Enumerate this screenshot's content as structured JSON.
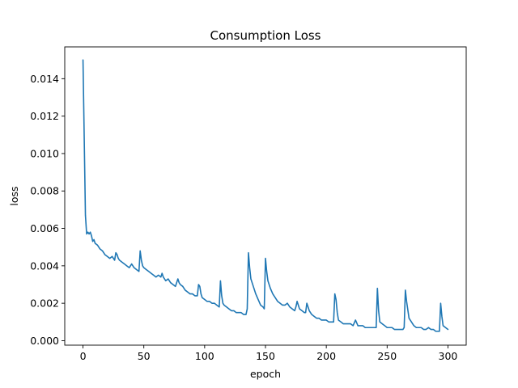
{
  "chart_data": {
    "type": "line",
    "title": "Consumption Loss",
    "xlabel": "epoch",
    "ylabel": "loss",
    "xlim": [
      -15,
      315
    ],
    "ylim": [
      -0.00024,
      0.0157
    ],
    "xticks": [
      0,
      50,
      100,
      150,
      200,
      250,
      300
    ],
    "xtick_labels": [
      "0",
      "50",
      "100",
      "150",
      "200",
      "250",
      "300"
    ],
    "yticks": [
      0.0,
      0.002,
      0.004,
      0.006,
      0.008,
      0.01,
      0.012,
      0.014
    ],
    "ytick_labels": [
      "0.000",
      "0.002",
      "0.004",
      "0.006",
      "0.008",
      "0.010",
      "0.012",
      "0.014"
    ],
    "grid": false,
    "line_color": "#1f77b4",
    "series": [
      {
        "x": [
          0,
          2,
          3,
          4,
          5,
          6,
          7,
          8,
          9,
          10,
          12,
          14,
          16,
          18,
          20,
          22,
          24,
          26,
          27,
          28,
          29,
          30,
          32,
          34,
          36,
          38,
          40,
          42,
          44,
          46,
          47,
          48,
          49,
          50,
          52,
          54,
          56,
          58,
          60,
          62,
          64,
          65,
          66,
          68,
          70,
          72,
          74,
          76,
          78,
          79,
          80,
          82,
          84,
          86,
          88,
          90,
          92,
          94,
          95,
          96,
          97,
          98,
          100,
          102,
          104,
          106,
          108,
          110,
          112,
          113,
          114,
          115,
          116,
          118,
          120,
          122,
          124,
          126,
          128,
          130,
          132,
          134,
          135,
          136,
          137,
          138,
          140,
          142,
          144,
          146,
          148,
          149,
          150,
          151,
          152,
          154,
          156,
          158,
          160,
          162,
          164,
          166,
          168,
          170,
          172,
          174,
          175,
          176,
          178,
          180,
          182,
          183,
          184,
          186,
          188,
          190,
          192,
          194,
          196,
          198,
          200,
          202,
          204,
          206,
          207,
          208,
          209,
          210,
          212,
          214,
          216,
          218,
          220,
          222,
          224,
          226,
          228,
          230,
          232,
          234,
          236,
          238,
          240,
          241,
          242,
          243,
          244,
          246,
          248,
          250,
          252,
          254,
          256,
          258,
          260,
          262,
          263,
          264,
          265,
          266,
          268,
          270,
          272,
          274,
          276,
          278,
          280,
          282,
          284,
          286,
          288,
          290,
          292,
          293,
          294,
          295,
          296,
          298,
          300
        ],
        "y": [
          0.015,
          0.0067,
          0.0057,
          0.0058,
          0.0057,
          0.0058,
          0.0056,
          0.0053,
          0.0054,
          0.0052,
          0.0051,
          0.0049,
          0.0048,
          0.0046,
          0.0045,
          0.0044,
          0.0045,
          0.0043,
          0.0047,
          0.0046,
          0.0044,
          0.0043,
          0.0042,
          0.0041,
          0.004,
          0.0039,
          0.0041,
          0.0039,
          0.0038,
          0.0037,
          0.0048,
          0.0043,
          0.004,
          0.0039,
          0.0038,
          0.0037,
          0.0036,
          0.0035,
          0.0034,
          0.0035,
          0.0034,
          0.0036,
          0.0034,
          0.0032,
          0.0033,
          0.0031,
          0.003,
          0.0029,
          0.0033,
          0.0031,
          0.003,
          0.0029,
          0.0027,
          0.0026,
          0.0025,
          0.0025,
          0.0024,
          0.0024,
          0.003,
          0.0029,
          0.0025,
          0.0023,
          0.0022,
          0.0021,
          0.0021,
          0.002,
          0.002,
          0.0019,
          0.0018,
          0.0032,
          0.0024,
          0.002,
          0.0019,
          0.0018,
          0.0017,
          0.0016,
          0.0016,
          0.0015,
          0.0015,
          0.0015,
          0.0014,
          0.0014,
          0.0017,
          0.0047,
          0.0039,
          0.0033,
          0.0029,
          0.0025,
          0.0022,
          0.0019,
          0.0018,
          0.0017,
          0.0044,
          0.0037,
          0.0032,
          0.0028,
          0.0025,
          0.0023,
          0.0021,
          0.002,
          0.0019,
          0.0019,
          0.002,
          0.0018,
          0.0017,
          0.0016,
          0.0018,
          0.0021,
          0.0017,
          0.0016,
          0.0015,
          0.0015,
          0.002,
          0.0016,
          0.0014,
          0.0013,
          0.0012,
          0.0012,
          0.0011,
          0.0011,
          0.0011,
          0.001,
          0.001,
          0.001,
          0.0025,
          0.0022,
          0.0015,
          0.0011,
          0.001,
          0.0009,
          0.0009,
          0.0009,
          0.0009,
          0.0008,
          0.0011,
          0.0008,
          0.0008,
          0.0008,
          0.0007,
          0.0007,
          0.0007,
          0.0007,
          0.0007,
          0.0007,
          0.0028,
          0.0016,
          0.001,
          0.0009,
          0.0008,
          0.0007,
          0.0007,
          0.0007,
          0.0006,
          0.0006,
          0.0006,
          0.0006,
          0.0006,
          0.0007,
          0.0027,
          0.0021,
          0.0012,
          0.001,
          0.0008,
          0.0007,
          0.0007,
          0.0007,
          0.0006,
          0.0006,
          0.0007,
          0.0006,
          0.0006,
          0.0005,
          0.0005,
          0.0005,
          0.002,
          0.0013,
          0.0008,
          0.0007,
          0.0006
        ]
      }
    ]
  }
}
